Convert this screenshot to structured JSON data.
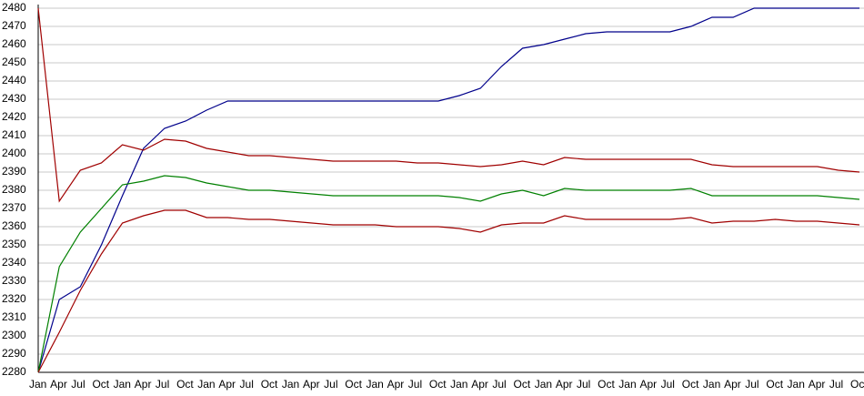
{
  "chart_data": {
    "type": "line",
    "categories": [
      "Jan",
      "Apr",
      "Jul",
      "Oct",
      "Jan",
      "Apr",
      "Jul",
      "Oct",
      "Jan",
      "Apr",
      "Jul",
      "Oct",
      "Jan",
      "Apr",
      "Jul",
      "Oct",
      "Jan",
      "Apr",
      "Jul",
      "Oct",
      "Jan",
      "Apr",
      "Jul",
      "Oct",
      "Jan",
      "Apr",
      "Jul",
      "Oct",
      "Jan",
      "Apr",
      "Jul",
      "Oct",
      "Jan",
      "Apr",
      "Jul",
      "Oct",
      "Jan",
      "Apr",
      "Jul",
      "Oct"
    ],
    "series": [
      {
        "color": "#00008b",
        "values": [
          2280,
          2320,
          2327,
          2350,
          2377,
          2403,
          2414,
          2418,
          2424,
          2429,
          2429,
          2429,
          2429,
          2429,
          2429,
          2429,
          2429,
          2429,
          2429,
          2429,
          2432,
          2436,
          2448,
          2458,
          2460,
          2463,
          2466,
          2467,
          2467,
          2467,
          2467,
          2470,
          2475,
          2475,
          2480,
          2480,
          2480,
          2480,
          2480,
          2480
        ]
      },
      {
        "color": "#a00000",
        "values": [
          2480,
          2374,
          2391,
          2395,
          2405,
          2402,
          2408,
          2407,
          2403,
          2401,
          2399,
          2399,
          2398,
          2397,
          2396,
          2396,
          2396,
          2396,
          2395,
          2395,
          2394,
          2393,
          2394,
          2396,
          2394,
          2398,
          2397,
          2397,
          2397,
          2397,
          2397,
          2397,
          2394,
          2393,
          2393,
          2393,
          2393,
          2393,
          2391,
          2390
        ]
      },
      {
        "color": "#008000",
        "values": [
          2280,
          2338,
          2357,
          2370,
          2383,
          2385,
          2388,
          2387,
          2384,
          2382,
          2380,
          2380,
          2379,
          2378,
          2377,
          2377,
          2377,
          2377,
          2377,
          2377,
          2376,
          2374,
          2378,
          2380,
          2377,
          2381,
          2380,
          2380,
          2380,
          2380,
          2380,
          2381,
          2377,
          2377,
          2377,
          2377,
          2377,
          2377,
          2376,
          2375
        ]
      },
      {
        "color": "#a00000",
        "values": [
          2280,
          2302,
          2325,
          2345,
          2362,
          2366,
          2369,
          2369,
          2365,
          2365,
          2364,
          2364,
          2363,
          2362,
          2361,
          2361,
          2361,
          2360,
          2360,
          2360,
          2359,
          2357,
          2361,
          2362,
          2362,
          2366,
          2364,
          2364,
          2364,
          2364,
          2364,
          2365,
          2362,
          2363,
          2363,
          2364,
          2363,
          2363,
          2362,
          2361
        ]
      }
    ],
    "ylim": [
      2280,
      2480
    ],
    "yticks": [
      2280,
      2290,
      2300,
      2310,
      2320,
      2330,
      2340,
      2350,
      2360,
      2370,
      2380,
      2390,
      2400,
      2410,
      2420,
      2430,
      2440,
      2450,
      2460,
      2470,
      2480
    ],
    "grid": true
  }
}
